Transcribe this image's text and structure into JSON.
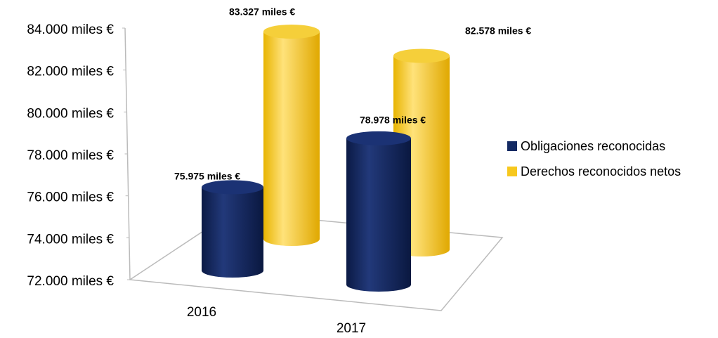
{
  "chart_data": {
    "type": "bar3d",
    "categories": [
      "2016",
      "2017"
    ],
    "series": [
      {
        "name": "Obligaciones reconocidas",
        "color": "#142a63",
        "values": [
          75975,
          78978
        ],
        "value_labels": [
          "75.975 miles €",
          "78.978 miles €"
        ]
      },
      {
        "name": "Derechos reconocidos netos",
        "color": "#f7c81e",
        "values": [
          83327,
          82578
        ],
        "value_labels": [
          "83.327 miles €",
          "82.578 miles €"
        ]
      }
    ],
    "ylim": [
      72000,
      84000
    ],
    "yticks": [
      {
        "value": 72000,
        "label": "72.000 miles €"
      },
      {
        "value": 74000,
        "label": "74.000 miles €"
      },
      {
        "value": 76000,
        "label": "76.000 miles €"
      },
      {
        "value": 78000,
        "label": "78.000 miles €"
      },
      {
        "value": 80000,
        "label": "80.000 miles €"
      },
      {
        "value": 82000,
        "label": "82.000 miles €"
      },
      {
        "value": 84000,
        "label": "84.000 miles €"
      }
    ],
    "legend": "right"
  }
}
